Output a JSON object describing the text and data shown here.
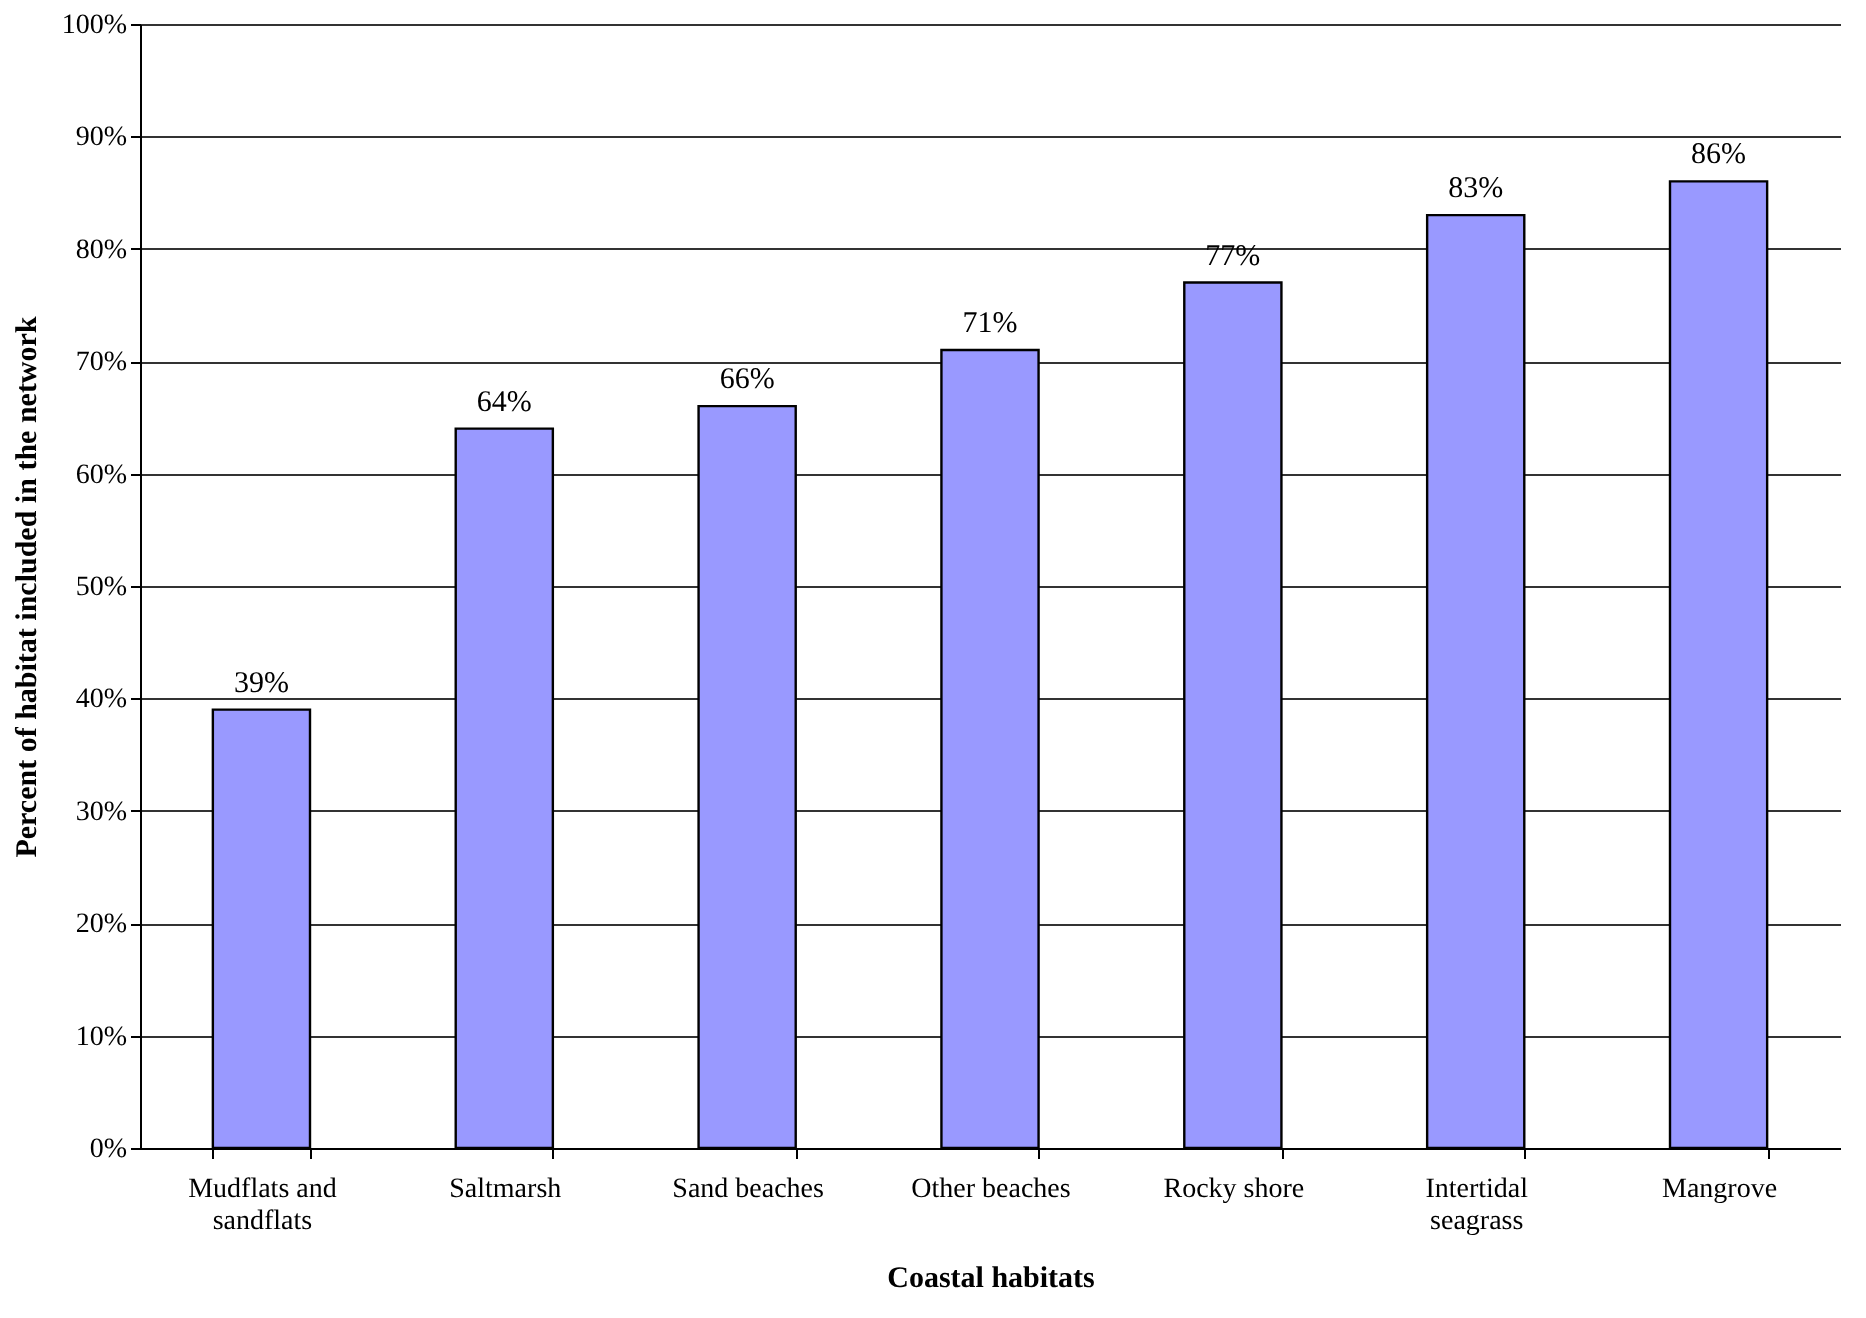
{
  "chart_data": {
    "type": "bar",
    "categories": [
      "Mudflats and\nsandflats",
      "Saltmarsh",
      "Sand beaches",
      "Other beaches",
      "Rocky shore",
      "Intertidal\nseagrass",
      "Mangrove"
    ],
    "values": [
      39,
      64,
      66,
      71,
      77,
      83,
      86
    ],
    "value_labels": [
      "39%",
      "64%",
      "66%",
      "71%",
      "77%",
      "83%",
      "86%"
    ],
    "color": "#9999ff",
    "xlabel": "Coastal habitats",
    "ylabel": "Percent of habitat included in the network",
    "ylim": [
      0,
      100
    ],
    "yticks": [
      {
        "value": 0,
        "label": "0%"
      },
      {
        "value": 10,
        "label": "10%"
      },
      {
        "value": 20,
        "label": "20%"
      },
      {
        "value": 30,
        "label": "30%"
      },
      {
        "value": 40,
        "label": "40%"
      },
      {
        "value": 50,
        "label": "50%"
      },
      {
        "value": 60,
        "label": "60%"
      },
      {
        "value": 70,
        "label": "70%"
      },
      {
        "value": 80,
        "label": "80%"
      },
      {
        "value": 90,
        "label": "90%"
      },
      {
        "value": 100,
        "label": "100%"
      }
    ],
    "grid": "y"
  }
}
